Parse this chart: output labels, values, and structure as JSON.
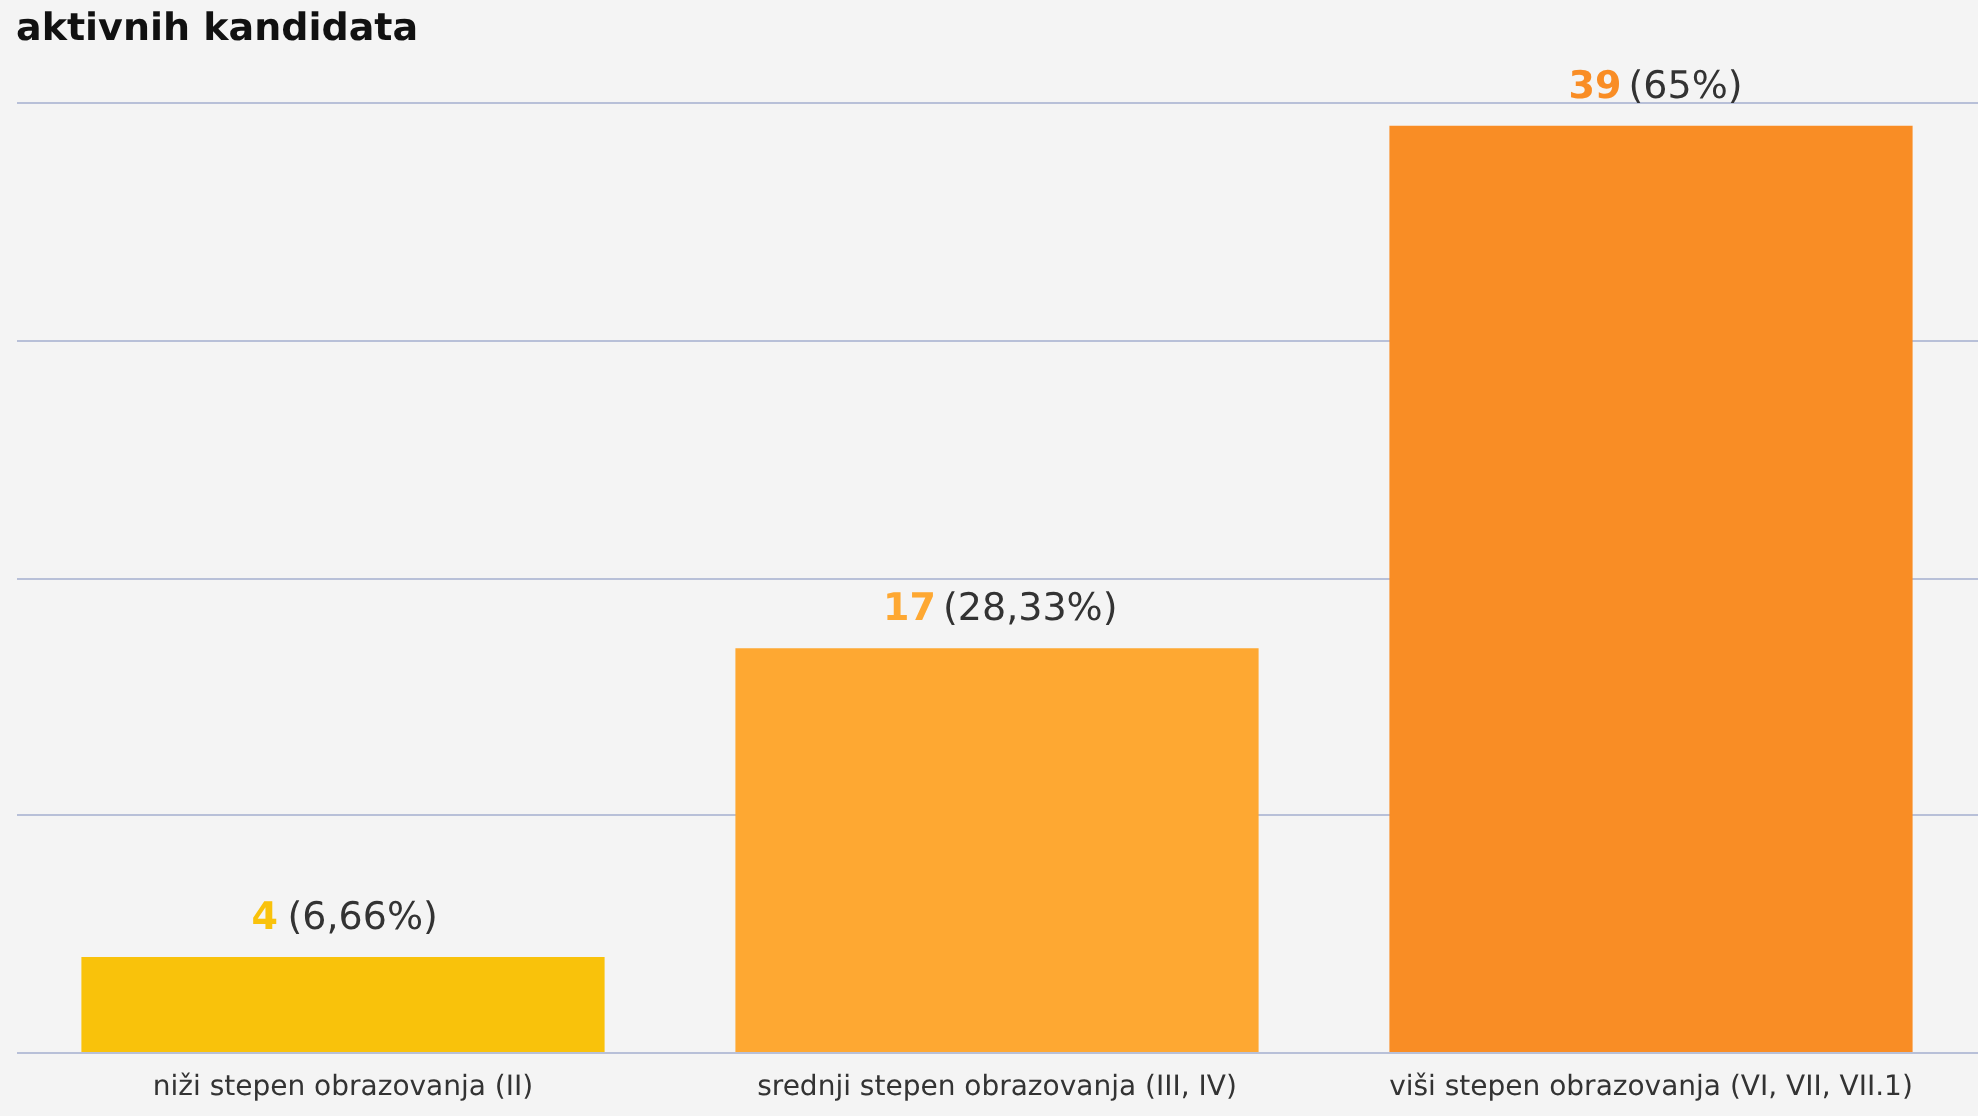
{
  "chart_data": {
    "type": "bar",
    "title": "aktivnih kandidata",
    "categories": [
      "niži stepen obrazovanja (II)",
      "srednji stepen obrazovanja (III, IV)",
      "viši stepen obrazovanja (VI, VII, VII.1)"
    ],
    "values": [
      4,
      17,
      39
    ],
    "colors": [
      "#f9c20b",
      "#fea832",
      "#f98d25"
    ],
    "value_labels": [
      "4 (6,66%)",
      "17 (28,33%)",
      "39 (65%)"
    ],
    "grid": "y",
    "tick_labels": "x"
  }
}
